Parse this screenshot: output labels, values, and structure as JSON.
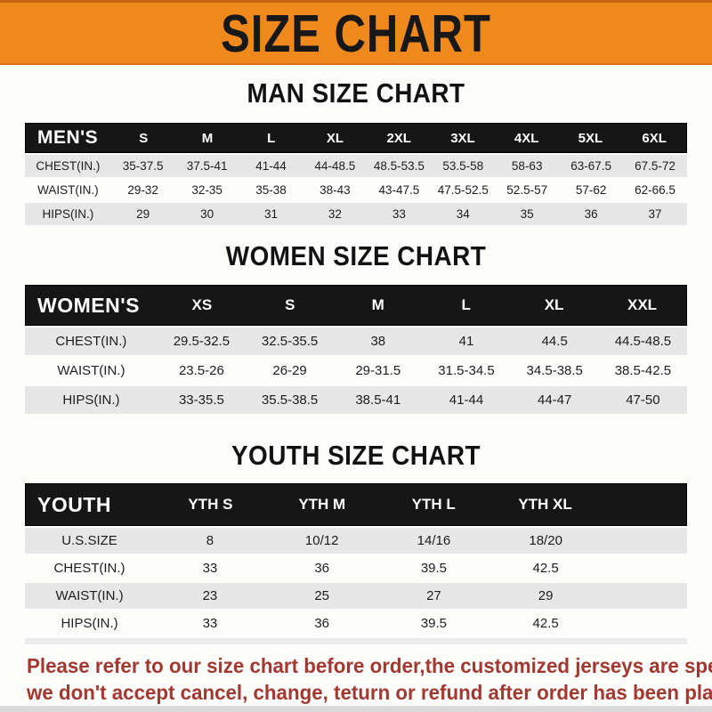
{
  "banner": {
    "title": "SIZE CHART",
    "background": "#F0891D",
    "text_color": "#181818"
  },
  "sections": [
    {
      "id": "men",
      "title": "MAN SIZE CHART",
      "table": {
        "header": [
          "MEN'S",
          "S",
          "M",
          "L",
          "XL",
          "2XL",
          "3XL",
          "4XL",
          "5XL",
          "6XL"
        ],
        "rows": [
          {
            "label": "CHEST(IN.)",
            "shaded": true,
            "values": [
              "35-37.5",
              "37.5-41",
              "41-44",
              "44-48.5",
              "48.5-53.5",
              "53.5-58",
              "58-63",
              "63-67.5",
              "67.5-72"
            ]
          },
          {
            "label": "WAIST(IN.)",
            "shaded": false,
            "values": [
              "29-32",
              "32-35",
              "35-38",
              "38-43",
              "43-47.5",
              "47.5-52.5",
              "52.5-57",
              "57-62",
              "62-66.5"
            ]
          },
          {
            "label": "HIPS(IN.)",
            "shaded": true,
            "values": [
              "29",
              "30",
              "31",
              "32",
              "33",
              "34",
              "35",
              "36",
              "37"
            ]
          }
        ]
      }
    },
    {
      "id": "women",
      "title": "WOMEN SIZE CHART",
      "table": {
        "header": [
          "WOMEN'S",
          "XS",
          "S",
          "M",
          "L",
          "XL",
          "XXL"
        ],
        "rows": [
          {
            "label": "CHEST(IN.)",
            "shaded": true,
            "values": [
              "29.5-32.5",
              "32.5-35.5",
              "38",
              "41",
              "44.5",
              "44.5-48.5"
            ]
          },
          {
            "label": "WAIST(IN.)",
            "shaded": false,
            "values": [
              "23.5-26",
              "26-29",
              "29-31.5",
              "31.5-34.5",
              "34.5-38.5",
              "38.5-42.5"
            ]
          },
          {
            "label": "HIPS(IN.)",
            "shaded": true,
            "values": [
              "33-35.5",
              "35.5-38.5",
              "38.5-41",
              "41-44",
              "44-47",
              "47-50"
            ]
          }
        ]
      }
    },
    {
      "id": "youth",
      "title": "YOUTH SIZE CHART",
      "table": {
        "header": [
          "YOUTH",
          "YTH S",
          "YTH M",
          "YTH L",
          "YTH XL"
        ],
        "rows": [
          {
            "label": "U.S.SIZE",
            "shaded": true,
            "values": [
              "8",
              "10/12",
              "14/16",
              "18/20"
            ]
          },
          {
            "label": "CHEST(IN.)",
            "shaded": false,
            "values": [
              "33",
              "36",
              "39.5",
              "42.5"
            ]
          },
          {
            "label": "WAIST(IN.)",
            "shaded": true,
            "values": [
              "23",
              "25",
              "27",
              "29"
            ]
          },
          {
            "label": "HIPS(IN.)",
            "shaded": false,
            "values": [
              "33",
              "36",
              "39.5",
              "42.5"
            ]
          }
        ]
      }
    }
  ],
  "note": {
    "lines": [
      "Please refer to our size chart before order,the customized jerseys are special products,",
      "we don't accept cancel, change, teturn or refund after order has been placed!"
    ],
    "color": "#A23931"
  },
  "colors": {
    "table_header_bg": "#161616",
    "table_header_text": "#FFFFFF",
    "row_shade": "#E7E7E7",
    "bottom_strip": "#DADADA"
  }
}
